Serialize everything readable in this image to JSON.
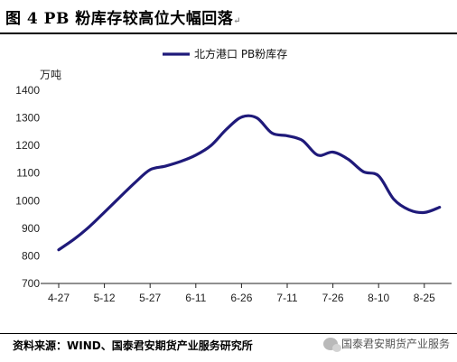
{
  "figure": {
    "title": "图 4   PB 粉库存较高位大幅回落",
    "source": "资料来源：WIND、国泰君安期货产业服务研究所",
    "watermark": "国泰君安期货产业服务",
    "corner_mark": "↵"
  },
  "chart_data": {
    "type": "line",
    "ylabel": "万吨",
    "ylim": [
      700,
      1400
    ],
    "yticks": [
      700,
      800,
      900,
      1000,
      1100,
      1200,
      1300,
      1400
    ],
    "xticks": [
      "4-27",
      "5-12",
      "5-27",
      "6-11",
      "6-26",
      "7-11",
      "7-26",
      "8-10",
      "8-25"
    ],
    "grid": false,
    "legend_position": "top",
    "series": [
      {
        "name": "北方港口 PB粉库存",
        "color": "#1f1a7a",
        "points": [
          {
            "x": "4-27",
            "y": 822
          },
          {
            "x": "5-02",
            "y": 860
          },
          {
            "x": "5-07",
            "y": 905
          },
          {
            "x": "5-12",
            "y": 958
          },
          {
            "x": "5-17",
            "y": 1012
          },
          {
            "x": "5-22",
            "y": 1065
          },
          {
            "x": "5-27",
            "y": 1112
          },
          {
            "x": "6-01",
            "y": 1125
          },
          {
            "x": "6-06",
            "y": 1142
          },
          {
            "x": "6-11",
            "y": 1165
          },
          {
            "x": "6-16",
            "y": 1200
          },
          {
            "x": "6-21",
            "y": 1258
          },
          {
            "x": "6-26",
            "y": 1303
          },
          {
            "x": "7-01",
            "y": 1300
          },
          {
            "x": "7-06",
            "y": 1245
          },
          {
            "x": "7-11",
            "y": 1235
          },
          {
            "x": "7-16",
            "y": 1218
          },
          {
            "x": "7-21",
            "y": 1165
          },
          {
            "x": "7-26",
            "y": 1176
          },
          {
            "x": "7-31",
            "y": 1150
          },
          {
            "x": "8-05",
            "y": 1105
          },
          {
            "x": "8-10",
            "y": 1090
          },
          {
            "x": "8-15",
            "y": 1005
          },
          {
            "x": "8-20",
            "y": 967
          },
          {
            "x": "8-25",
            "y": 957
          },
          {
            "x": "8-30",
            "y": 976
          }
        ]
      }
    ]
  }
}
